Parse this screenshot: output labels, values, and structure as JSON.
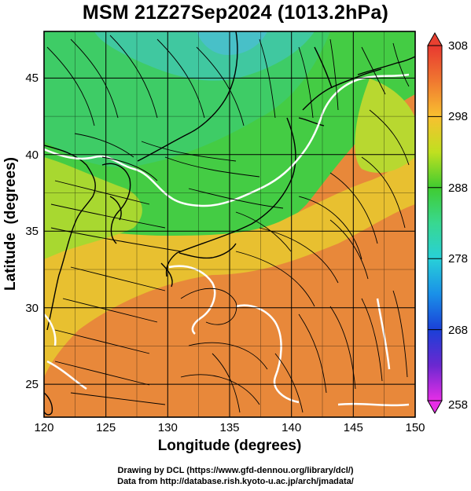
{
  "map": {
    "title": "MSM 21Z27Sep2024 (1013.2hPa)",
    "x_axis_label": "Longitude (degrees)",
    "y_axis_label": "Latitude  (degrees)",
    "lon_range": [
      120,
      150
    ],
    "lat_range": [
      22.4,
      47.6
    ],
    "lon_ticks": [
      "120",
      "125",
      "130",
      "135",
      "140",
      "145",
      "150"
    ],
    "lat_ticks": [
      "25",
      "30",
      "35",
      "40",
      "45"
    ],
    "colorbar": {
      "min": 258,
      "max": 308,
      "ticks": [
        "258",
        "268",
        "278",
        "288",
        "298",
        "308"
      ],
      "colors": [
        "#e62ee6",
        "#4020c0",
        "#1858e8",
        "#28c8e8",
        "#38d888",
        "#40cc30",
        "#b8e020",
        "#f0e020",
        "#f8b030",
        "#f07830",
        "#e84030"
      ]
    },
    "background_color": "#e8883a"
  },
  "credits": {
    "line1": "Drawing by DCL (https://www.gfd-dennou.org/library/dcl/)",
    "line2": "Data from http://database.rish.kyoto-u.ac.jp/arch/jmadata/"
  }
}
